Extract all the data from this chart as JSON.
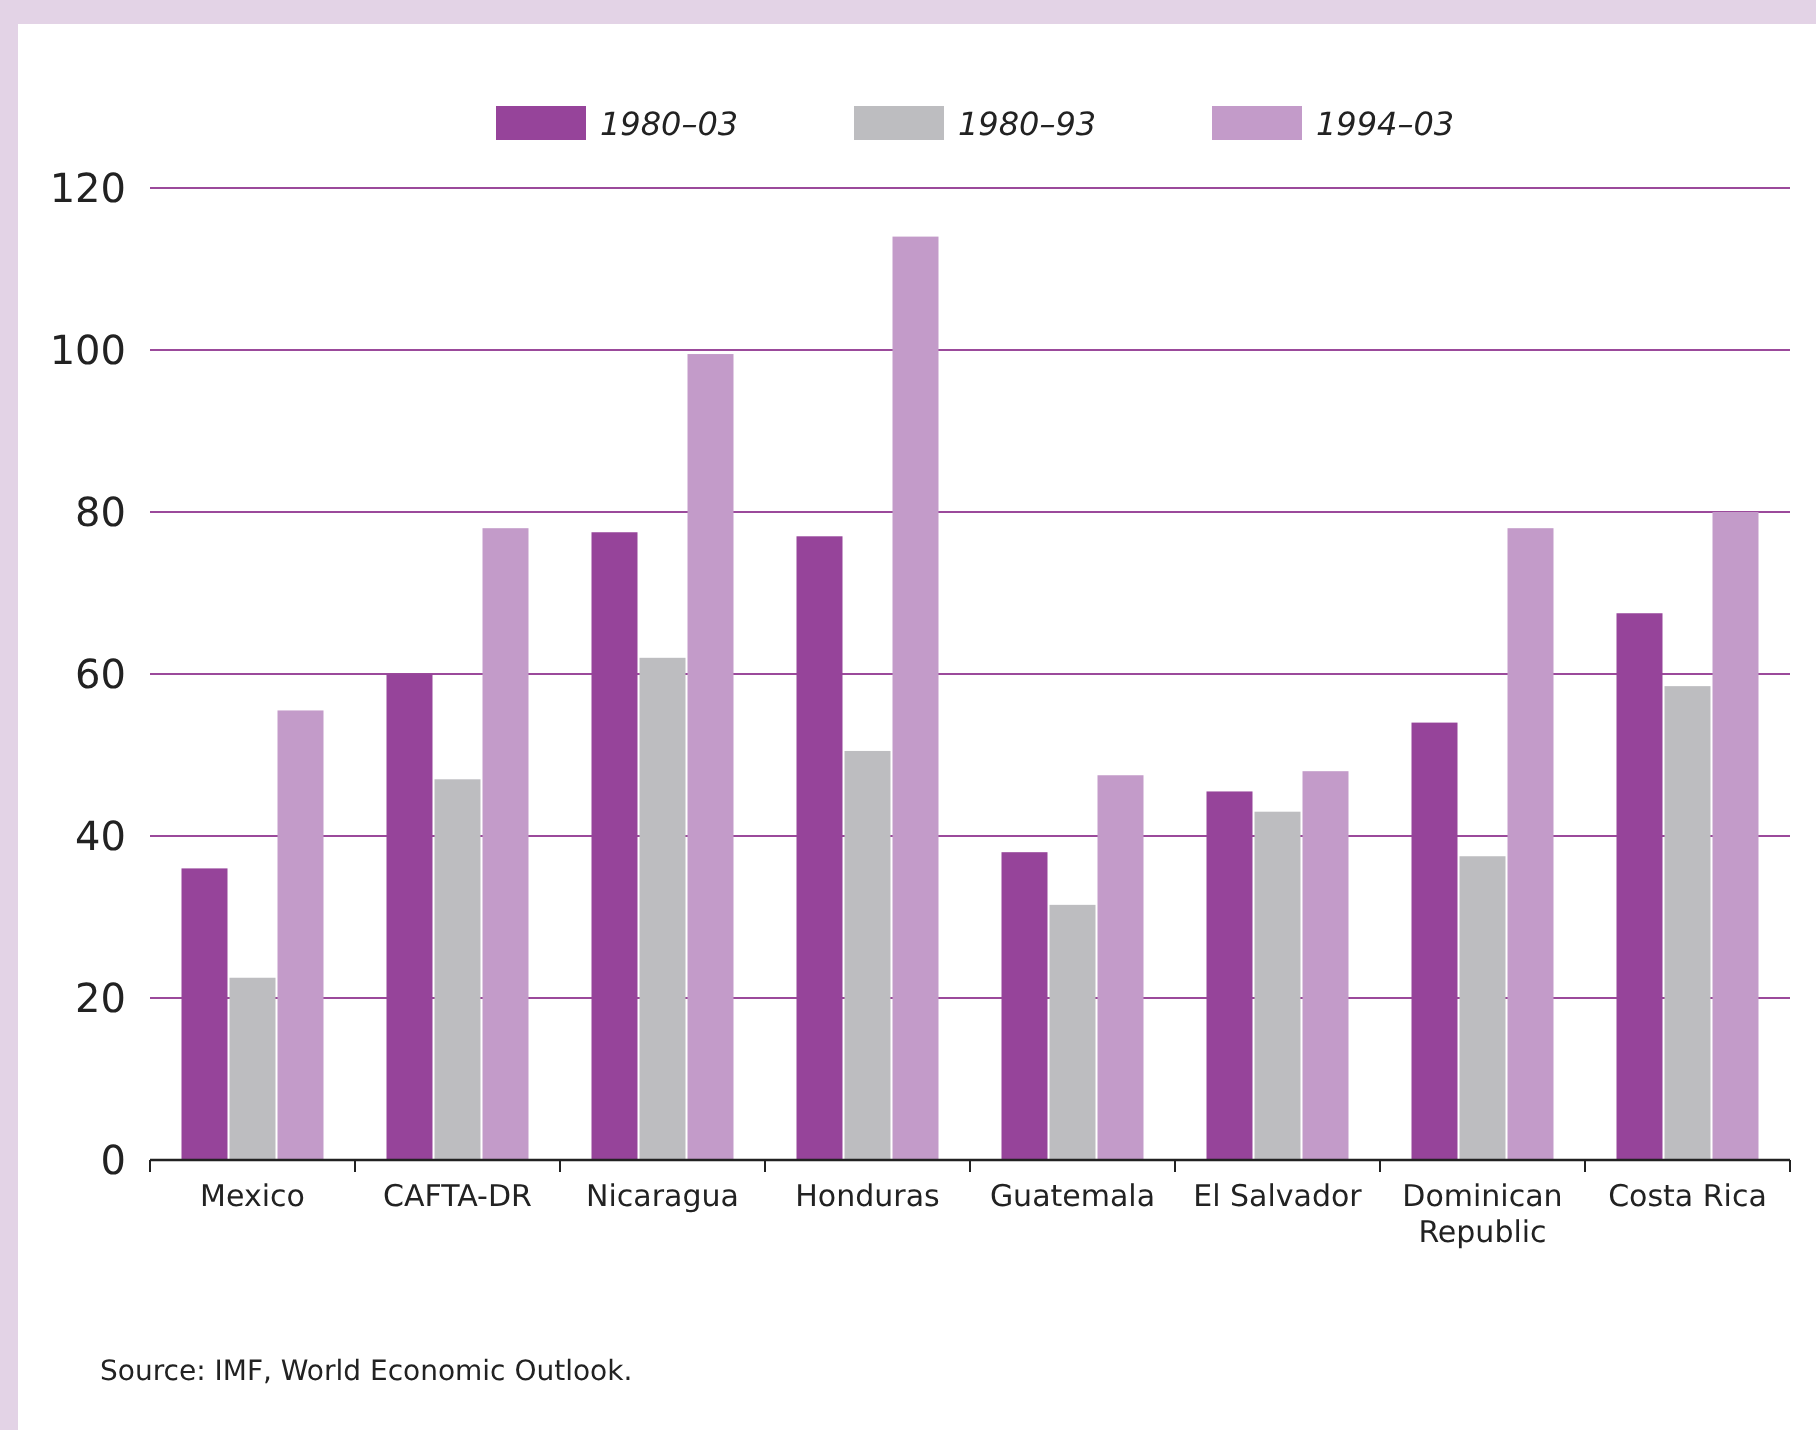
{
  "chart_data": {
    "type": "bar",
    "categories": [
      "Mexico",
      "CAFTA-DR",
      "Nicaragua",
      "Honduras",
      "Guatemala",
      "El Salvador",
      "Dominican Republic",
      "Costa Rica"
    ],
    "series": [
      {
        "name": "1980–03",
        "color": "#96449a",
        "values": [
          36,
          60,
          77.5,
          77,
          38,
          45.5,
          54,
          67.5
        ]
      },
      {
        "name": "1980–93",
        "color": "#bdbdc0",
        "values": [
          22.5,
          47,
          62,
          50.5,
          31.5,
          43,
          37.5,
          58.5
        ]
      },
      {
        "name": "1994–03",
        "color": "#c39bc9",
        "values": [
          55.5,
          78,
          99.5,
          114,
          47.5,
          48,
          78,
          80
        ]
      }
    ],
    "ylim": [
      0,
      120
    ],
    "yticks": [
      0,
      20,
      40,
      60,
      80,
      100,
      120
    ],
    "grid": "y",
    "legend": "top",
    "annotations": [
      "Source: IMF, World Economic Outlook."
    ]
  }
}
